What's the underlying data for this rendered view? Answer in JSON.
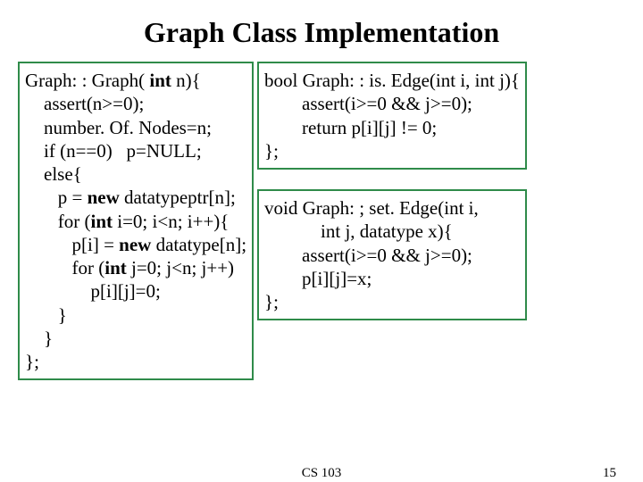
{
  "title": "Graph Class Implementation",
  "title_fontsize": 32,
  "footer": {
    "course": "CS 103",
    "page": "15",
    "fontsize": 15
  },
  "box_border_color": "#2f8b4a",
  "box_background": "#ffffff",
  "code_fontsize": 21,
  "left": {
    "kw": {
      "int1": "int",
      "new1": "new",
      "int2": "int",
      "new2": "new",
      "int3": "int"
    },
    "t": {
      "l1a": "Graph: : Graph( ",
      "l1b": " n){",
      "l2": "    assert(n>=0);",
      "l3": "    number. Of. Nodes=n;",
      "l4": "    if (n==0)   p=NULL;",
      "l5": "    else{",
      "l6a": "       p = ",
      "l6b": " datatypeptr[n];",
      "l7a": "       for (",
      "l7b": " i=0; i<n; i++){",
      "l8a": "          p[i] = ",
      "l8b": " datatype[n];",
      "l9a": "          for (",
      "l9b": " j=0; j<n; j++)",
      "l10": "              p[i][j]=0;",
      "l11": "       }",
      "l12": "    }",
      "l13": "};"
    }
  },
  "right1": {
    "l1": "bool Graph: : is. Edge(int i, int j){",
    "l2": "        assert(i>=0 && j>=0);",
    "l3": "        return p[i][j] != 0;",
    "l4": "};"
  },
  "right2": {
    "l1": "void Graph: ; set. Edge(int i,",
    "l2": "            int j, datatype x){",
    "l3": "        assert(i>=0 && j>=0);",
    "l4": "        p[i][j]=x;",
    "l5": "};"
  }
}
